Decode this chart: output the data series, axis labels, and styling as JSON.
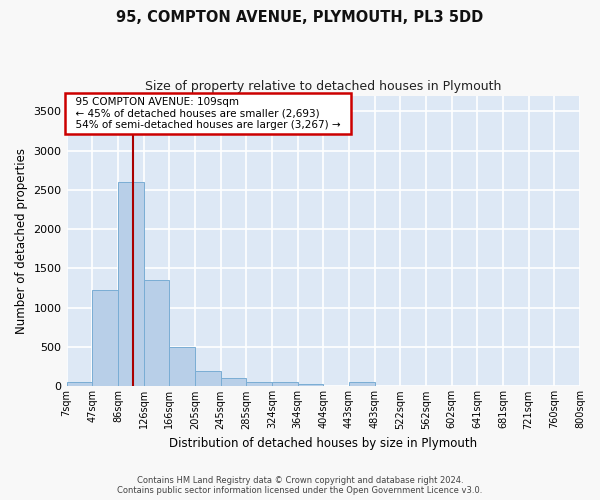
{
  "title_line1": "95, COMPTON AVENUE, PLYMOUTH, PL3 5DD",
  "title_line2": "Size of property relative to detached houses in Plymouth",
  "xlabel": "Distribution of detached houses by size in Plymouth",
  "ylabel": "Number of detached properties",
  "bar_color": "#b8cfe8",
  "bar_edge_color": "#7aadd4",
  "background_color": "#dde8f5",
  "grid_color": "#ffffff",
  "bin_labels": [
    "7sqm",
    "47sqm",
    "86sqm",
    "126sqm",
    "166sqm",
    "205sqm",
    "245sqm",
    "285sqm",
    "324sqm",
    "364sqm",
    "404sqm",
    "443sqm",
    "483sqm",
    "522sqm",
    "562sqm",
    "602sqm",
    "641sqm",
    "681sqm",
    "721sqm",
    "760sqm",
    "800sqm"
  ],
  "bar_values": [
    60,
    1230,
    2600,
    1350,
    500,
    195,
    105,
    55,
    50,
    35,
    0,
    50,
    0,
    0,
    0,
    0,
    0,
    0,
    0,
    0
  ],
  "ylim": [
    0,
    3700
  ],
  "yticks": [
    0,
    500,
    1000,
    1500,
    2000,
    2500,
    3000,
    3500
  ],
  "annotation_title": "95 COMPTON AVENUE: 109sqm",
  "annotation_line1": "← 45% of detached houses are smaller (2,693)",
  "annotation_line2": "54% of semi-detached houses are larger (3,267) →",
  "annotation_box_color": "#ffffff",
  "annotation_border_color": "#cc0000",
  "red_line_color": "#aa0000",
  "footer_line1": "Contains HM Land Registry data © Crown copyright and database right 2024.",
  "footer_line2": "Contains public sector information licensed under the Open Government Licence v3.0.",
  "fig_bg": "#f8f8f8"
}
